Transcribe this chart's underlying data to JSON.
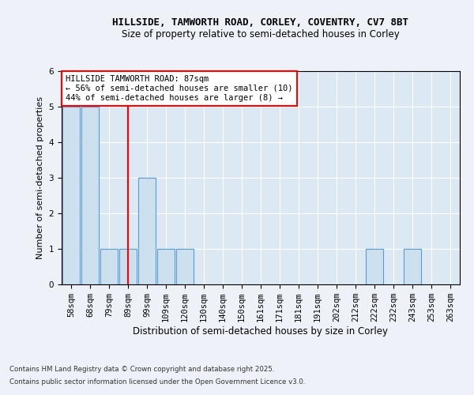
{
  "title1": "HILLSIDE, TAMWORTH ROAD, CORLEY, COVENTRY, CV7 8BT",
  "title2": "Size of property relative to semi-detached houses in Corley",
  "xlabel": "Distribution of semi-detached houses by size in Corley",
  "ylabel": "Number of semi-detached properties",
  "categories": [
    "58sqm",
    "68sqm",
    "79sqm",
    "89sqm",
    "99sqm",
    "109sqm",
    "120sqm",
    "130sqm",
    "140sqm",
    "150sqm",
    "161sqm",
    "171sqm",
    "181sqm",
    "191sqm",
    "202sqm",
    "212sqm",
    "222sqm",
    "232sqm",
    "243sqm",
    "253sqm",
    "263sqm"
  ],
  "values": [
    5,
    5,
    1,
    1,
    3,
    1,
    1,
    0,
    0,
    0,
    0,
    0,
    0,
    0,
    0,
    0,
    1,
    0,
    1,
    0,
    0
  ],
  "bar_color": "#cce0f0",
  "bar_edge_color": "#5b9bd5",
  "red_line_index": 3,
  "annotation_title": "HILLSIDE TAMWORTH ROAD: 87sqm",
  "annotation_line2": "← 56% of semi-detached houses are smaller (10)",
  "annotation_line3": "44% of semi-detached houses are larger (8) →",
  "ylim": [
    0,
    6
  ],
  "yticks": [
    0,
    1,
    2,
    3,
    4,
    5,
    6
  ],
  "footnote1": "Contains HM Land Registry data © Crown copyright and database right 2025.",
  "footnote2": "Contains public sector information licensed under the Open Government Licence v3.0.",
  "bg_color": "#eef2f8",
  "plot_bg_color": "#dce8f4"
}
